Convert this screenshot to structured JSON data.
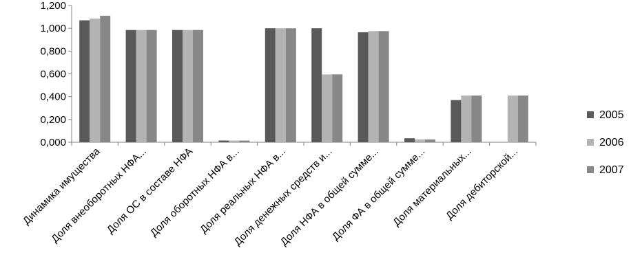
{
  "chart_data": {
    "type": "bar",
    "title": "",
    "xlabel": "",
    "ylabel": "",
    "ylim": [
      0,
      1.2
    ],
    "yticks": [
      "0,000",
      "0,200",
      "0,400",
      "0,600",
      "0,800",
      "1,000",
      "1,200"
    ],
    "grid": false,
    "legend_position": "right",
    "categories": [
      "Динамика имущества",
      "Доля внеоборотных НФА...",
      "Доля ОС в составе НФА",
      "Доля оборотных НФА в...",
      "Доля реальных НФА в...",
      "Доля денежных средств и...",
      "Доля НФА в общей сумме...",
      "Доля ФА в общей сумме...",
      "Доля материальных...",
      "Доля дебиторской..."
    ],
    "series": [
      {
        "name": "2005",
        "color": "#595959",
        "values": [
          1.07,
          0.985,
          0.985,
          0.015,
          1.0,
          1.0,
          0.965,
          0.035,
          0.37,
          0.0
        ]
      },
      {
        "name": "2006",
        "color": "#b3b3b3",
        "values": [
          1.085,
          0.985,
          0.985,
          0.015,
          1.0,
          0.595,
          0.975,
          0.025,
          0.41,
          0.41
        ]
      },
      {
        "name": "2007",
        "color": "#878787",
        "values": [
          1.11,
          0.985,
          0.985,
          0.015,
          1.0,
          0.595,
          0.975,
          0.025,
          0.41,
          0.41
        ]
      }
    ]
  }
}
